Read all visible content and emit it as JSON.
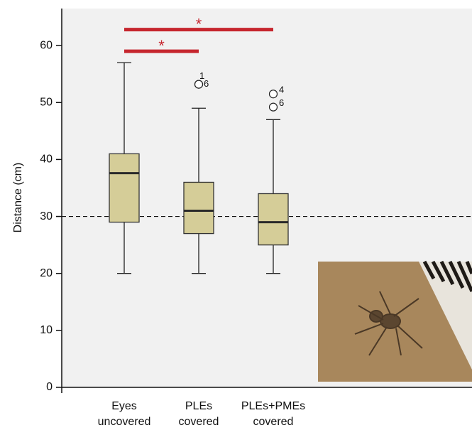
{
  "chart_data": {
    "type": "box",
    "y_label": "Distance (cm)",
    "categories": [
      [
        "Eyes",
        "uncovered"
      ],
      [
        "PLEs",
        "covered"
      ],
      [
        "PLEs+PMEs",
        "covered"
      ]
    ],
    "boxes": [
      {
        "min": 20,
        "q1": 29,
        "median": 37.6,
        "q3": 41,
        "max": 57,
        "outliers": [],
        "outlier_labels": []
      },
      {
        "min": 20,
        "q1": 27,
        "median": 31,
        "q3": 36,
        "max": 49,
        "outliers": [
          53.2,
          53.2
        ],
        "outlier_labels": [
          "1",
          "6"
        ]
      },
      {
        "min": 20,
        "q1": 25,
        "median": 29,
        "q3": 34,
        "max": 47,
        "outliers": [
          51.5,
          49.2
        ],
        "outlier_labels": [
          "4",
          "6"
        ]
      }
    ],
    "color": "#d5cd98",
    "reference_line": 30,
    "significance": [
      {
        "from": 0,
        "to": 1,
        "y": 59,
        "label": "*"
      },
      {
        "from": 0,
        "to": 2,
        "y": 62.8,
        "label": "*"
      }
    ],
    "significance_color": "#c6262e",
    "ylim": [
      0,
      66.5
    ],
    "yticks": [
      0,
      10,
      20,
      30,
      40,
      50,
      60
    ]
  }
}
